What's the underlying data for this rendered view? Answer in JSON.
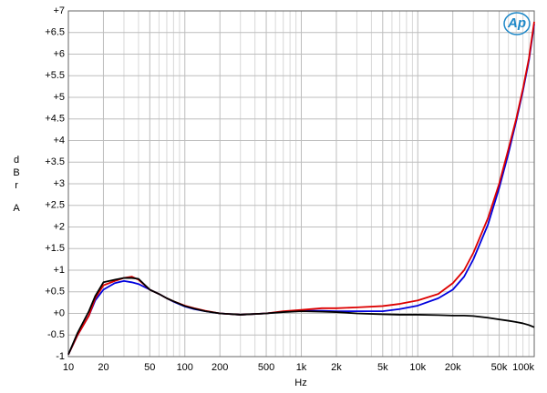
{
  "chart_data": {
    "type": "line",
    "x_label": "Hz",
    "y_label": "dBr",
    "y_unit": "A",
    "logo": "Ap",
    "x_log": true,
    "grid": true,
    "xlim": [
      10,
      100000
    ],
    "ylim": [
      -1,
      7
    ],
    "xticks": [
      10,
      20,
      50,
      100,
      200,
      500,
      {
        "value": 1000,
        "label": "1k"
      },
      {
        "value": 2000,
        "label": "2k"
      },
      {
        "value": 5000,
        "label": "5k"
      },
      {
        "value": 10000,
        "label": "10k"
      },
      {
        "value": 20000,
        "label": "20k"
      },
      {
        "value": 50000,
        "label": "50k"
      },
      {
        "value": 100000,
        "label": "100k"
      }
    ],
    "minor_xticks": [
      30,
      40,
      60,
      70,
      80,
      90,
      300,
      400,
      600,
      700,
      800,
      900,
      3000,
      4000,
      6000,
      7000,
      8000,
      9000,
      30000,
      40000,
      60000,
      70000,
      80000,
      90000
    ],
    "yticks": [
      {
        "value": 7,
        "label": "+7"
      },
      {
        "value": 6.5,
        "label": "+6.5"
      },
      {
        "value": 6,
        "label": "+6"
      },
      {
        "value": 5.5,
        "label": "+5.5"
      },
      {
        "value": 5,
        "label": "+5"
      },
      {
        "value": 4.5,
        "label": "+4.5"
      },
      {
        "value": 4,
        "label": "+4"
      },
      {
        "value": 3.5,
        "label": "+3.5"
      },
      {
        "value": 3,
        "label": "+3"
      },
      {
        "value": 2.5,
        "label": "+2.5"
      },
      {
        "value": 2,
        "label": "+2"
      },
      {
        "value": 1.5,
        "label": "+1.5"
      },
      {
        "value": 1,
        "label": "+1"
      },
      {
        "value": 0.5,
        "label": "+0.5"
      },
      {
        "value": 0,
        "label": "+0"
      },
      -0.5,
      -1
    ],
    "x": [
      10,
      12,
      15,
      17,
      20,
      25,
      30,
      35,
      40,
      50,
      60,
      70,
      80,
      100,
      120,
      150,
      200,
      300,
      500,
      700,
      1000,
      1500,
      2000,
      3000,
      5000,
      7000,
      10000,
      15000,
      20000,
      25000,
      30000,
      40000,
      50000,
      60000,
      70000,
      80000,
      90000,
      100000
    ],
    "series": [
      {
        "color": "#0000dd",
        "values": [
          -0.95,
          -0.5,
          -0.05,
          0.3,
          0.55,
          0.7,
          0.75,
          0.72,
          0.68,
          0.55,
          0.45,
          0.35,
          0.27,
          0.16,
          0.1,
          0.05,
          0.0,
          -0.03,
          0.0,
          0.04,
          0.06,
          0.06,
          0.05,
          0.05,
          0.05,
          0.1,
          0.18,
          0.35,
          0.55,
          0.85,
          1.25,
          2.05,
          2.9,
          3.7,
          4.45,
          5.15,
          5.85,
          6.7
        ]
      },
      {
        "color": "#dd0000",
        "values": [
          -0.95,
          -0.5,
          -0.05,
          0.35,
          0.65,
          0.75,
          0.82,
          0.85,
          0.78,
          0.55,
          0.45,
          0.35,
          0.28,
          0.18,
          0.12,
          0.06,
          0.0,
          -0.03,
          0.0,
          0.05,
          0.08,
          0.12,
          0.12,
          0.14,
          0.17,
          0.22,
          0.3,
          0.45,
          0.7,
          1.0,
          1.4,
          2.2,
          3.0,
          3.8,
          4.5,
          5.2,
          5.9,
          6.75
        ]
      },
      {
        "color": "#000000",
        "values": [
          -0.95,
          -0.45,
          0.05,
          0.4,
          0.72,
          0.78,
          0.82,
          0.82,
          0.8,
          0.55,
          0.45,
          0.35,
          0.28,
          0.17,
          0.11,
          0.05,
          0.0,
          -0.03,
          0.0,
          0.03,
          0.05,
          0.04,
          0.03,
          0.0,
          -0.02,
          -0.03,
          -0.03,
          -0.04,
          -0.05,
          -0.05,
          -0.06,
          -0.1,
          -0.14,
          -0.17,
          -0.2,
          -0.23,
          -0.27,
          -0.32
        ]
      }
    ]
  }
}
